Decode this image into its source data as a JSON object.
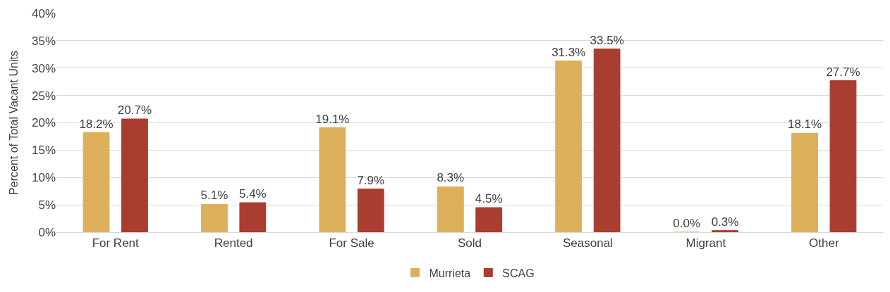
{
  "chart_data": {
    "type": "bar",
    "ylabel": "Percent of Total Vacant Units",
    "categories": [
      "For Rent",
      "Rented",
      "For Sale",
      "Sold",
      "Seasonal",
      "Migrant",
      "Other"
    ],
    "series": [
      {
        "name": "Murrieta",
        "color": "#dcb05a",
        "values": [
          18.2,
          5.1,
          19.1,
          8.3,
          31.3,
          0.0,
          18.1
        ],
        "value_labels": [
          "18.2%",
          "5.1%",
          "19.1%",
          "8.3%",
          "31.3%",
          "0.0%",
          "18.1%"
        ]
      },
      {
        "name": "SCAG",
        "color": "#a93d30",
        "values": [
          20.7,
          5.4,
          7.9,
          4.5,
          33.5,
          0.3,
          27.7
        ],
        "value_labels": [
          "20.7%",
          "5.4%",
          "7.9%",
          "4.5%",
          "33.5%",
          "0.3%",
          "27.7%"
        ]
      }
    ],
    "ylim": [
      0,
      40
    ],
    "yticks": [
      {
        "value": 0,
        "label": "0%"
      },
      {
        "value": 5,
        "label": "5%"
      },
      {
        "value": 10,
        "label": "10%"
      },
      {
        "value": 15,
        "label": "15%"
      },
      {
        "value": 20,
        "label": "20%"
      },
      {
        "value": 25,
        "label": "25%"
      },
      {
        "value": 30,
        "label": "30%"
      },
      {
        "value": 35,
        "label": "35%"
      },
      {
        "value": 40,
        "label": "40%"
      }
    ],
    "grid": "y",
    "legend": "bottom"
  }
}
